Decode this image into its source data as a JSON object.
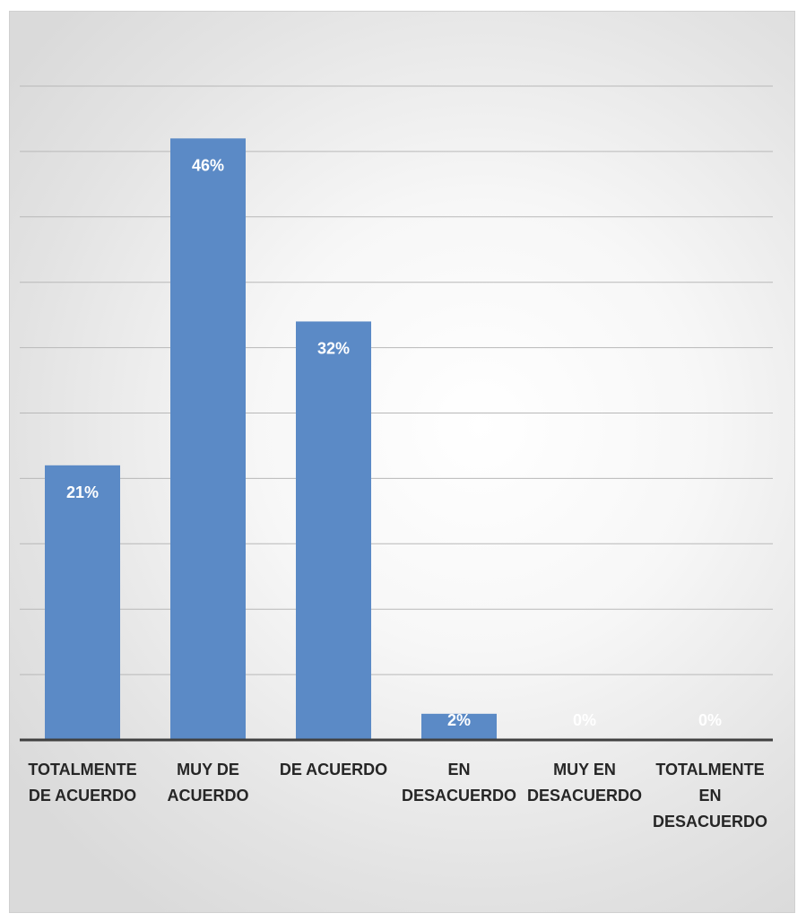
{
  "chart_data": {
    "type": "bar",
    "categories": [
      [
        "TOTALMENTE",
        "DE ACUERDO"
      ],
      [
        "MUY DE",
        "ACUERDO"
      ],
      [
        "DE ACUERDO"
      ],
      [
        "EN",
        "DESACUERDO"
      ],
      [
        "MUY EN",
        "DESACUERDO"
      ],
      [
        "TOTALMENTE",
        "EN",
        "DESACUERDO"
      ]
    ],
    "values": [
      21,
      46,
      32,
      2,
      0,
      0
    ],
    "data_labels": [
      "21%",
      "46%",
      "32%",
      "2%",
      "0%",
      "0%"
    ],
    "ylim": [
      0,
      50
    ],
    "grid": true,
    "bar_color": "#5b8ac6",
    "label_color": "#ffffff",
    "grid_color": "#b8b8b8",
    "axis_color": "#404040",
    "category_label_color": "#262626"
  }
}
